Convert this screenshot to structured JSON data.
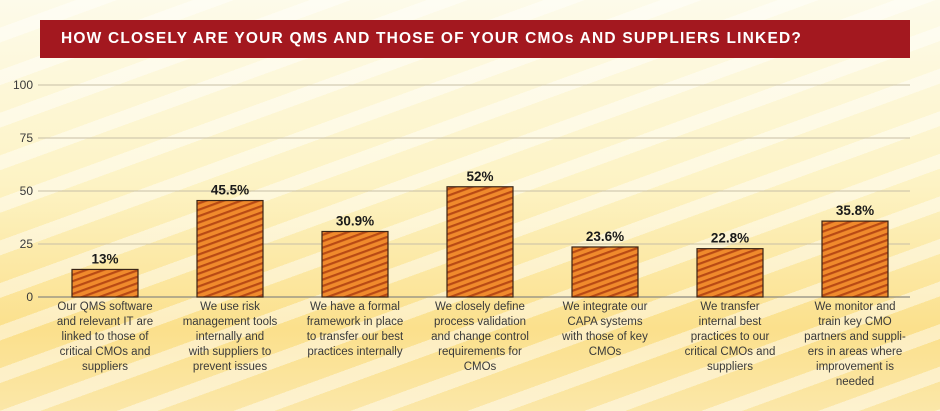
{
  "title": "HOW CLOSELY ARE YOUR QMS AND THOSE OF YOUR CMOs AND SUPPLIERS LINKED?",
  "colors": {
    "title_bg": "#a3181f",
    "bar_fill": "#f08a2c",
    "bar_stripe": "#b84a14",
    "grid": "#c8bfa6"
  },
  "chart_data": {
    "type": "bar",
    "title": "HOW CLOSELY ARE YOUR QMS AND THOSE OF YOUR CMOs AND SUPPLIERS LINKED?",
    "categories": [
      "Our QMS software and relevant IT are linked to those of critical CMOs and suppliers",
      "We use risk management tools internally and with suppliers to prevent issues",
      "We have a formal framework in place to transfer our best practices internally",
      "We closely define process validation and change control requirements for CMOs",
      "We integrate our CAPA systems with those of key CMOs",
      "We transfer internal best practices to our critical CMOs and suppliers",
      "We monitor and train key CMO partners and suppliers in areas where improvement is needed"
    ],
    "category_lines": [
      [
        "Our QMS software",
        "and relevant IT are",
        "linked to those of",
        "critical CMOs and",
        "suppliers"
      ],
      [
        "We use risk",
        "management tools",
        "internally and",
        "with suppliers to",
        "prevent issues"
      ],
      [
        "We have a formal",
        "framework in place",
        "to transfer our best",
        "practices internally"
      ],
      [
        "We closely define",
        "process validation",
        "and change control",
        "requirements for",
        "CMOs"
      ],
      [
        "We integrate our",
        "CAPA systems",
        "with those of key",
        "CMOs"
      ],
      [
        "We transfer",
        "internal best",
        "practices to our",
        "critical CMOs and",
        "suppliers"
      ],
      [
        "We monitor and",
        "train key CMO",
        "partners and suppli-",
        "ers in areas where",
        "improvement is",
        "needed"
      ]
    ],
    "values": [
      13,
      45.5,
      30.9,
      52,
      23.6,
      22.8,
      35.8
    ],
    "value_labels": [
      "13%",
      "45.5%",
      "30.9%",
      "52%",
      "23.6%",
      "22.8%",
      "35.8%"
    ],
    "yticks": [
      0,
      25,
      50,
      75,
      100
    ],
    "ytick_labels": [
      "0",
      "25",
      "50",
      "75",
      "100"
    ],
    "ylim": [
      0,
      100
    ],
    "xlabel": "",
    "ylabel": "",
    "grid": true
  }
}
